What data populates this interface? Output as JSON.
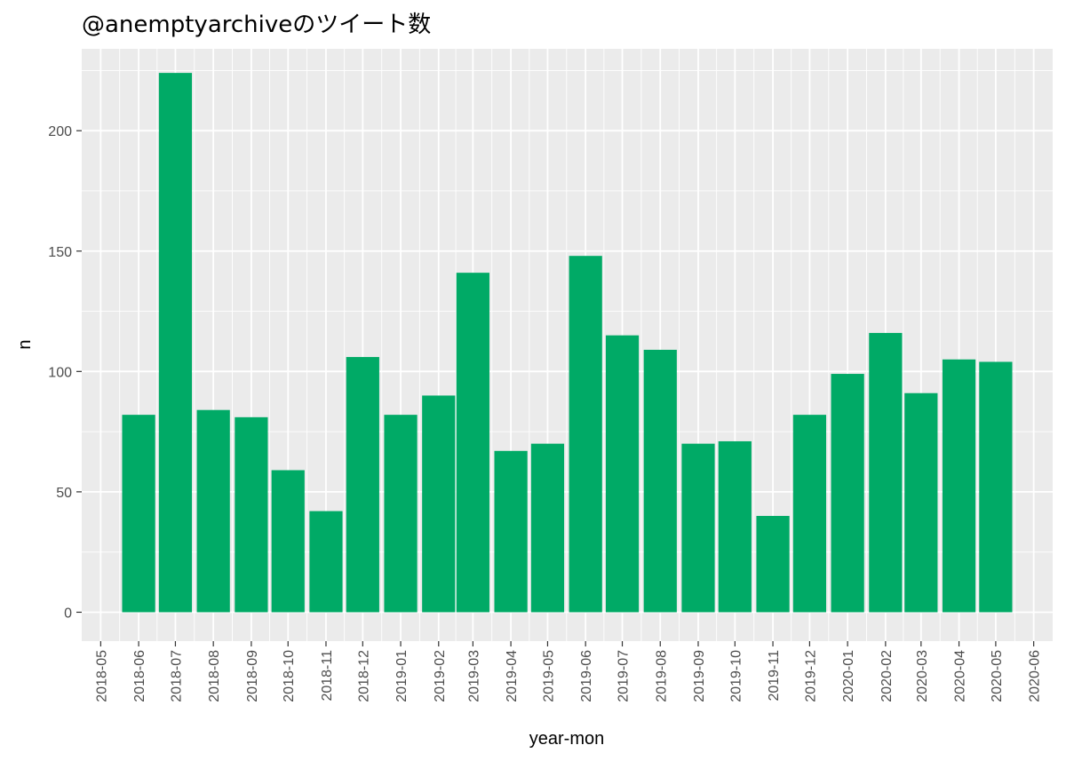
{
  "chart_data": {
    "type": "bar",
    "title": "@anemptyarchiveのツイート数",
    "xlabel": "year-mon",
    "ylabel": "n",
    "x_tick_labels": [
      "2018-05",
      "2018-06",
      "2018-07",
      "2018-08",
      "2018-09",
      "2018-10",
      "2018-11",
      "2018-12",
      "2019-01",
      "2019-02",
      "2019-03",
      "2019-04",
      "2019-05",
      "2019-06",
      "2019-07",
      "2019-08",
      "2019-09",
      "2019-10",
      "2019-11",
      "2019-12",
      "2020-01",
      "2020-02",
      "2020-03",
      "2020-04",
      "2020-05",
      "2020-06"
    ],
    "x_range": [
      "2018-05-01",
      "2020-06-01"
    ],
    "y_ticks": [
      0,
      50,
      100,
      150,
      200
    ],
    "ylim": [
      -12,
      234
    ],
    "grid": true,
    "bar_color": "#00AA66",
    "panel_background": "#EBEBEB",
    "grid_color": "#FFFFFF",
    "series": [
      {
        "categories": [
          "2018-06",
          "2018-07",
          "2018-08",
          "2018-09",
          "2018-10",
          "2018-11",
          "2018-12",
          "2019-01",
          "2019-02",
          "2019-03",
          "2019-04",
          "2019-05",
          "2019-06",
          "2019-07",
          "2019-08",
          "2019-09",
          "2019-10",
          "2019-11",
          "2019-12",
          "2020-01",
          "2020-02",
          "2020-03",
          "2020-04",
          "2020-05"
        ],
        "values": [
          82,
          224,
          84,
          81,
          59,
          42,
          106,
          82,
          90,
          141,
          67,
          70,
          148,
          115,
          109,
          70,
          71,
          40,
          82,
          99,
          116,
          91,
          105,
          104
        ]
      }
    ]
  }
}
